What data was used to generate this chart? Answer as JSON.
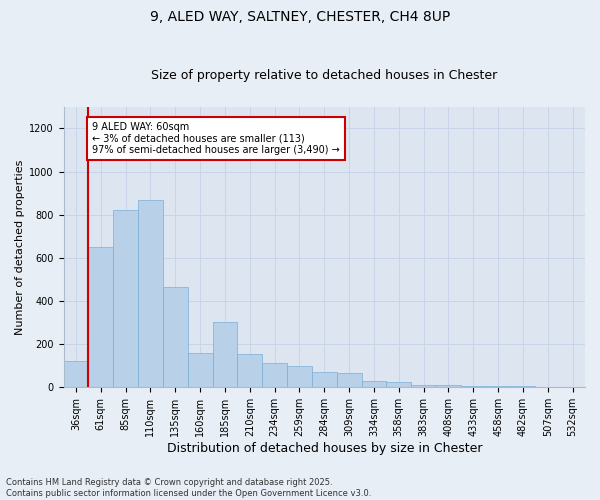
{
  "title_line1": "9, ALED WAY, SALTNEY, CHESTER, CH4 8UP",
  "title_line2": "Size of property relative to detached houses in Chester",
  "xlabel": "Distribution of detached houses by size in Chester",
  "ylabel": "Number of detached properties",
  "categories": [
    "36sqm",
    "61sqm",
    "85sqm",
    "110sqm",
    "135sqm",
    "160sqm",
    "185sqm",
    "210sqm",
    "234sqm",
    "259sqm",
    "284sqm",
    "309sqm",
    "334sqm",
    "358sqm",
    "383sqm",
    "408sqm",
    "433sqm",
    "458sqm",
    "482sqm",
    "507sqm",
    "532sqm"
  ],
  "values": [
    120,
    650,
    820,
    870,
    465,
    160,
    305,
    155,
    115,
    100,
    70,
    65,
    30,
    25,
    10,
    10,
    8,
    5,
    5,
    3,
    3
  ],
  "bar_color": "#b8d0e8",
  "bar_edge_color": "#7aaed6",
  "annotation_box_edge_color": "#cc0000",
  "annotation_text": "9 ALED WAY: 60sqm\n← 3% of detached houses are smaller (113)\n97% of semi-detached houses are larger (3,490) →",
  "subject_bar_index": 1,
  "ylim": [
    0,
    1300
  ],
  "yticks": [
    0,
    200,
    400,
    600,
    800,
    1000,
    1200
  ],
  "grid_color": "#c8d4e8",
  "background_color": "#dde6f0",
  "fig_background_color": "#e8eef6",
  "footer": "Contains HM Land Registry data © Crown copyright and database right 2025.\nContains public sector information licensed under the Open Government Licence v3.0.",
  "subject_line_color": "#cc0000",
  "title1_fontsize": 10,
  "title2_fontsize": 9,
  "ylabel_fontsize": 8,
  "xlabel_fontsize": 9,
  "tick_fontsize": 7,
  "footer_fontsize": 6
}
